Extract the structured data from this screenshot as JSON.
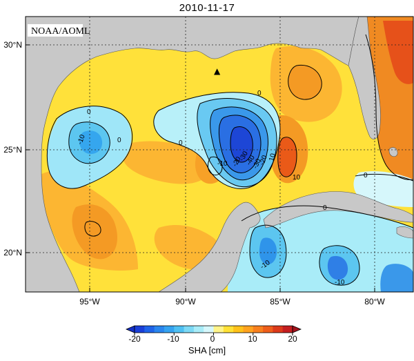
{
  "title": "2010-11-17",
  "badge": "NOAA/AOML",
  "lat_labels": [
    "30°N",
    "25°N",
    "20°N"
  ],
  "lon_labels": [
    "95°W",
    "90°W",
    "85°W",
    "80°W"
  ],
  "contour_labels": [
    "-10",
    "0",
    "0",
    "0",
    "-10",
    "0",
    "10",
    "-20",
    "-30",
    "-40",
    "-30",
    "-20",
    "10",
    "0",
    "-10",
    "-10",
    "0"
  ],
  "colorbar": {
    "ticks": [
      "-20",
      "-10",
      "0",
      "10",
      "20"
    ],
    "label": "SHA [cm]",
    "colors": [
      "#1a3fd8",
      "#1f63e8",
      "#2a86ee",
      "#35a3f0",
      "#4fc0f2",
      "#7dd9f5",
      "#a9ecf8",
      "#d6f7fb",
      "#fff48a",
      "#ffe136",
      "#ffc21a",
      "#ffa31f",
      "#f8801e",
      "#ee5e1b",
      "#dc3a1a",
      "#c41e20"
    ]
  },
  "marker": "▲"
}
